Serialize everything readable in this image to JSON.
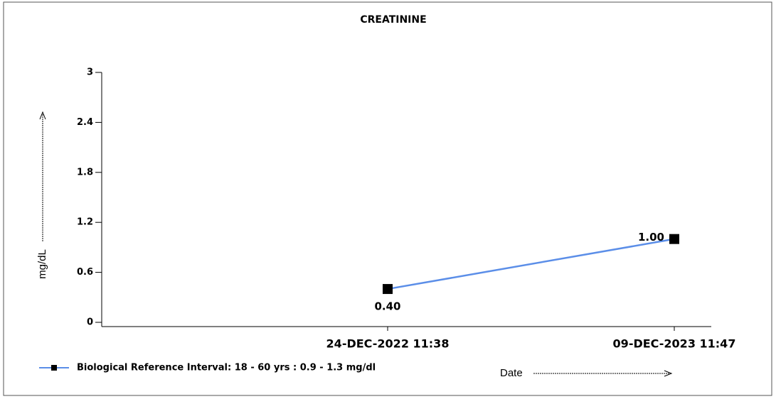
{
  "chart_data": {
    "type": "line",
    "title": "CREATININE",
    "x_label": "Date",
    "y_label": "mg/dL",
    "categories": [
      "24-DEC-2022 11:38",
      "09-DEC-2023 11:47"
    ],
    "series": [
      {
        "name": "Biological Reference Interval: 18 - 60 yrs : 0.9 - 1.3 mg/dl",
        "color": "#5b8ee8",
        "marker_color": "#000000",
        "values": [
          0.4,
          1.0
        ],
        "value_labels": [
          "0.40",
          "1.00"
        ]
      }
    ],
    "ylim": [
      0,
      3
    ],
    "yticks": [
      0,
      0.6,
      1.2,
      1.8,
      2.4,
      3
    ],
    "grid": false
  }
}
